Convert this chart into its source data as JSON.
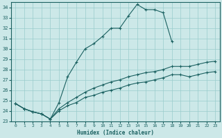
{
  "xlabel": "Humidex (Indice chaleur)",
  "xlim": [
    -0.5,
    23.5
  ],
  "ylim": [
    23,
    34.5
  ],
  "yticks": [
    23,
    24,
    25,
    26,
    27,
    28,
    29,
    30,
    31,
    32,
    33,
    34
  ],
  "xticks": [
    0,
    1,
    2,
    3,
    4,
    5,
    6,
    7,
    8,
    9,
    10,
    11,
    12,
    13,
    14,
    15,
    16,
    17,
    18,
    19,
    20,
    21,
    22,
    23
  ],
  "bg_color": "#cce8e8",
  "line_color": "#1a6060",
  "grid_color": "#99cccc",
  "series": [
    {
      "x": [
        0,
        1,
        2,
        3,
        4,
        5,
        6,
        7,
        8,
        9,
        10,
        11,
        12,
        13,
        14,
        15,
        16,
        17,
        18
      ],
      "y": [
        24.7,
        24.2,
        23.9,
        23.7,
        23.2,
        24.8,
        27.3,
        28.7,
        30.0,
        30.5,
        31.2,
        32.0,
        32.0,
        33.2,
        34.3,
        33.8,
        33.8,
        33.5,
        30.7
      ]
    },
    {
      "x": [
        0,
        1,
        2,
        3,
        4,
        5,
        6,
        7,
        8,
        9,
        10,
        11,
        12,
        13,
        14,
        15,
        16,
        17,
        18,
        19,
        20,
        21,
        22,
        23
      ],
      "y": [
        24.7,
        24.2,
        23.9,
        23.7,
        23.2,
        24.2,
        24.8,
        25.3,
        25.8,
        26.2,
        26.5,
        26.8,
        27.0,
        27.3,
        27.5,
        27.7,
        27.8,
        28.0,
        28.3,
        28.3,
        28.3,
        28.5,
        28.7,
        28.8
      ]
    },
    {
      "x": [
        0,
        1,
        2,
        3,
        4,
        5,
        6,
        7,
        8,
        9,
        10,
        11,
        12,
        13,
        14,
        15,
        16,
        17,
        18,
        19,
        20,
        21,
        22,
        23
      ],
      "y": [
        24.7,
        24.2,
        23.9,
        23.7,
        23.2,
        24.0,
        24.5,
        24.8,
        25.3,
        25.5,
        25.8,
        26.0,
        26.2,
        26.5,
        26.7,
        26.8,
        27.0,
        27.2,
        27.5,
        27.5,
        27.3,
        27.5,
        27.7,
        27.8
      ]
    }
  ]
}
